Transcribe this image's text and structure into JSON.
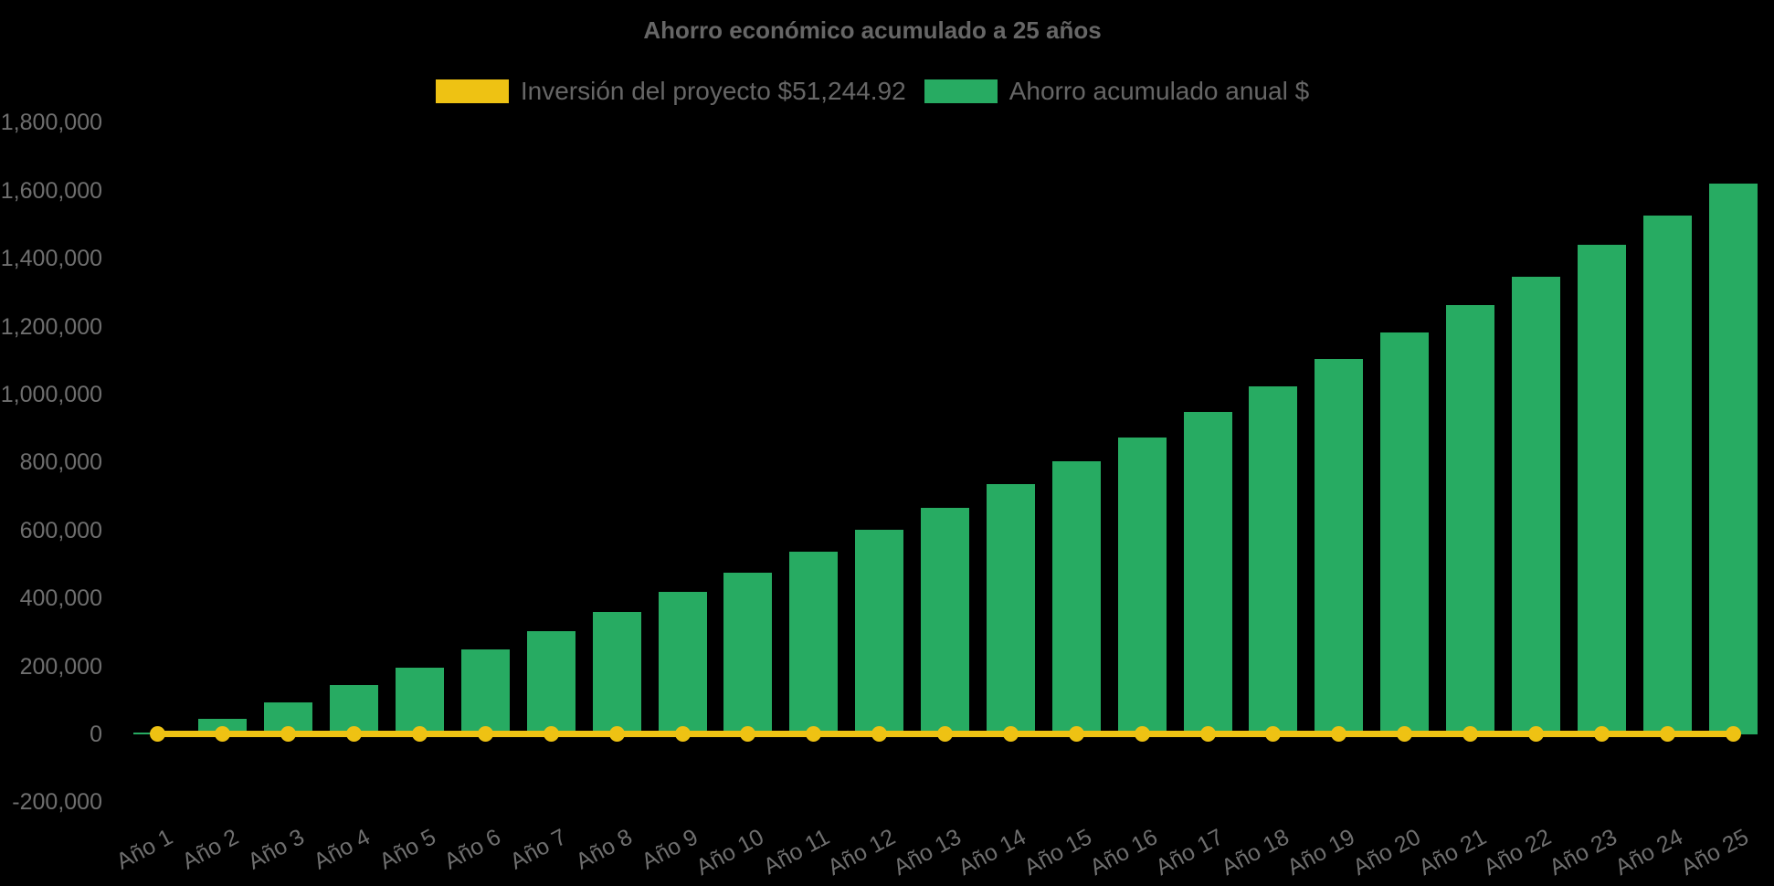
{
  "title": "Ahorro económico acumulado a 25 años",
  "theme": {
    "background": "#000000",
    "bar_color": "#27ab62",
    "line_color": "#eec213",
    "title_color": "#666666",
    "tick_color": "#6f6f6f"
  },
  "chart_data": {
    "type": "bar",
    "title": "Ahorro económico acumulado a 25 años",
    "legend_position": "top",
    "grid": false,
    "xlabel": "",
    "ylabel": "",
    "ylim": [
      -200000,
      1800000
    ],
    "y_ticks": [
      {
        "value": -200000,
        "label": "-200,000"
      },
      {
        "value": 0,
        "label": "0"
      },
      {
        "value": 200000,
        "label": "200,000"
      },
      {
        "value": 400000,
        "label": "400,000"
      },
      {
        "value": 600000,
        "label": "600,000"
      },
      {
        "value": 800000,
        "label": "800,000"
      },
      {
        "value": 1000000,
        "label": "1,000,000"
      },
      {
        "value": 1200000,
        "label": "1,200,000"
      },
      {
        "value": 1400000,
        "label": "1,400,000"
      },
      {
        "value": 1600000,
        "label": "1,600,000"
      },
      {
        "value": 1800000,
        "label": "1,800,000"
      }
    ],
    "categories": [
      "Año 1",
      "Año 2",
      "Año 3",
      "Año 4",
      "Año 5",
      "Año 6",
      "Año 7",
      "Año 8",
      "Año 9",
      "Año 10",
      "Año 11",
      "Año 12",
      "Año 13",
      "Año 14",
      "Año 15",
      "Año 16",
      "Año 17",
      "Año 18",
      "Año 19",
      "Año 20",
      "Año 21",
      "Año 22",
      "Año 23",
      "Año 24",
      "Año 25"
    ],
    "series": [
      {
        "name": "Inversión del proyecto $51,244.92",
        "type": "line",
        "color": "#eec213",
        "marker": "circle",
        "values": [
          0,
          0,
          0,
          0,
          0,
          0,
          0,
          0,
          0,
          0,
          0,
          0,
          0,
          0,
          0,
          0,
          0,
          0,
          0,
          0,
          0,
          0,
          0,
          0,
          0
        ]
      },
      {
        "name": "Ahorro acumulado anual $",
        "type": "bar",
        "color": "#27ab62",
        "values": [
          4000,
          47000,
          95000,
          145000,
          197000,
          250000,
          305000,
          360000,
          420000,
          477000,
          538000,
          601000,
          668000,
          736000,
          803000,
          875000,
          950000,
          1023000,
          1104000,
          1184000,
          1264000,
          1348000,
          1440000,
          1528000,
          1621000
        ]
      }
    ]
  }
}
